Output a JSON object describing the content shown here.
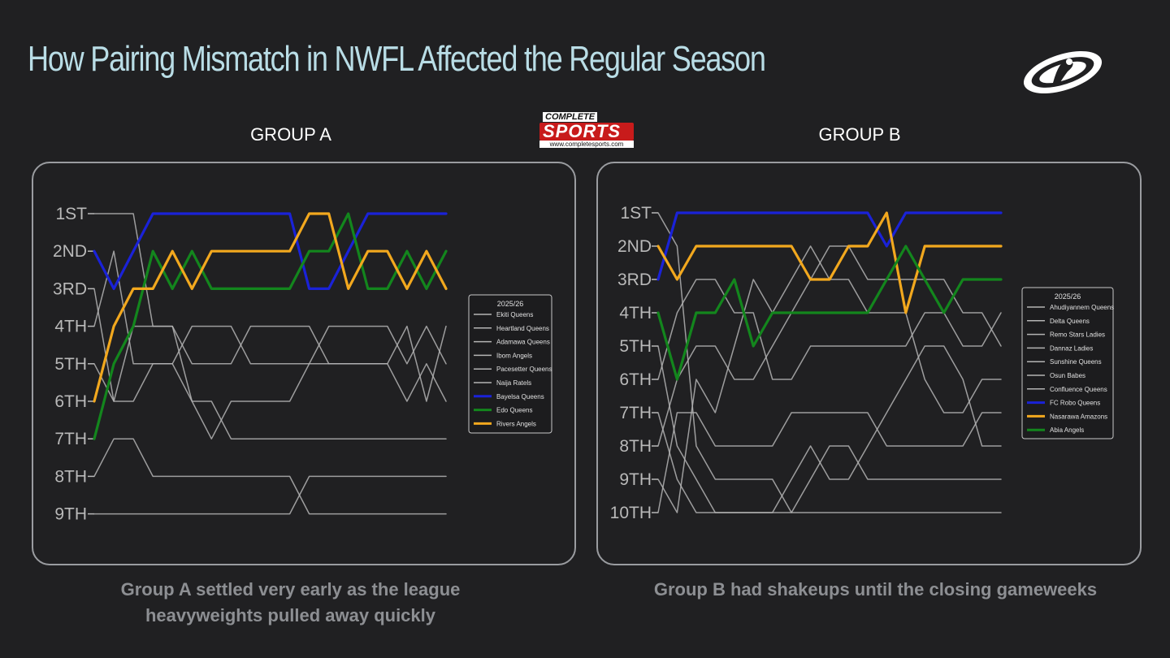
{
  "title": "How Pairing Mismatch in NWFL Affected the Regular Season",
  "logo": {
    "top": "COMPLETE",
    "main": "SPORTS",
    "url": "www.completesports.com"
  },
  "colors": {
    "background": "#202022",
    "title": "#b9dde6",
    "grey_line": "#b4b4b4",
    "blue": "#1a22d8",
    "green": "#13861d",
    "orange": "#f2a81e"
  },
  "chart_data": [
    {
      "type": "line",
      "title": "GROUP A",
      "caption": "Group A settled very early as the league heavyweights pulled away quickly",
      "legend_title": "2025/26",
      "legend_position": "right",
      "y_ticks": [
        "1ST",
        "2ND",
        "3RD",
        "4TH",
        "5TH",
        "6TH",
        "7TH",
        "8TH",
        "9TH"
      ],
      "y_inverted": true,
      "ylim": [
        1,
        9
      ],
      "x": [
        1,
        2,
        3,
        4,
        5,
        6,
        7,
        8,
        9,
        10,
        11,
        12,
        13,
        14,
        15,
        16,
        17,
        18,
        19
      ],
      "series": [
        {
          "name": "Ekiti Queens",
          "color": "#b4b4b4",
          "values": [
            1,
            1,
            1,
            4,
            4,
            6,
            6,
            7,
            7,
            7,
            7,
            7,
            7,
            7,
            7,
            7,
            7,
            7,
            7
          ]
        },
        {
          "name": "Heartland Queens",
          "color": "#b4b4b4",
          "values": [
            3,
            6,
            6,
            5,
            5,
            6,
            7,
            6,
            6,
            6,
            6,
            5,
            5,
            5,
            5,
            5,
            6,
            5,
            6
          ]
        },
        {
          "name": "Adamawa Queens",
          "color": "#b4b4b4",
          "values": [
            4,
            2,
            5,
            5,
            5,
            4,
            4,
            4,
            5,
            5,
            5,
            5,
            4,
            4,
            4,
            4,
            5,
            4,
            5
          ]
        },
        {
          "name": "Ibom Angels",
          "color": "#b4b4b4",
          "values": [
            5,
            6,
            4,
            4,
            4,
            5,
            5,
            5,
            4,
            4,
            4,
            4,
            5,
            5,
            5,
            5,
            4,
            6,
            4
          ]
        },
        {
          "name": "Pacesetter Queens",
          "color": "#b4b4b4",
          "values": [
            8,
            7,
            7,
            8,
            8,
            8,
            8,
            8,
            8,
            8,
            8,
            9,
            9,
            9,
            9,
            9,
            9,
            9,
            9
          ]
        },
        {
          "name": "Naija Ratels",
          "color": "#b4b4b4",
          "values": [
            9,
            9,
            9,
            9,
            9,
            9,
            9,
            9,
            9,
            9,
            9,
            8,
            8,
            8,
            8,
            8,
            8,
            8,
            8
          ]
        },
        {
          "name": "Bayelsa Queens",
          "color": "#1a22d8",
          "values": [
            2,
            3,
            2,
            1,
            1,
            1,
            1,
            1,
            1,
            1,
            1,
            3,
            3,
            2,
            1,
            1,
            1,
            1,
            1
          ]
        },
        {
          "name": "Edo Queens",
          "color": "#13861d",
          "values": [
            7,
            5,
            4,
            2,
            3,
            2,
            3,
            3,
            3,
            3,
            3,
            2,
            2,
            1,
            3,
            3,
            2,
            3,
            2
          ]
        },
        {
          "name": "Rivers Angels",
          "color": "#f2a81e",
          "values": [
            6,
            4,
            3,
            3,
            2,
            3,
            2,
            2,
            2,
            2,
            2,
            1,
            1,
            3,
            2,
            2,
            3,
            2,
            3
          ]
        }
      ]
    },
    {
      "type": "line",
      "title": "GROUP B",
      "caption": "Group B had shakeups until the closing gameweeks",
      "legend_title": "2025/26",
      "legend_position": "right",
      "y_ticks": [
        "1ST",
        "2ND",
        "3RD",
        "4TH",
        "5TH",
        "6TH",
        "7TH",
        "8TH",
        "9TH",
        "10TH"
      ],
      "y_inverted": true,
      "ylim": [
        1,
        10
      ],
      "x": [
        1,
        2,
        3,
        4,
        5,
        6,
        7,
        8,
        9,
        10,
        11,
        12,
        13,
        14,
        15,
        16,
        17,
        18,
        19
      ],
      "series": [
        {
          "name": "Ahudiyannem Queens",
          "color": "#b4b4b4",
          "values": [
            1,
            2,
            8,
            9,
            9,
            9,
            9,
            10,
            10,
            10,
            10,
            10,
            10,
            10,
            10,
            10,
            10,
            10,
            10
          ]
        },
        {
          "name": "Delta Queens",
          "color": "#b4b4b4",
          "values": [
            5,
            8,
            9,
            10,
            10,
            10,
            10,
            9,
            8,
            9,
            9,
            8,
            7,
            6,
            5,
            5,
            6,
            8,
            8
          ]
        },
        {
          "name": "Remo Stars Ladies",
          "color": "#b4b4b4",
          "values": [
            6,
            4,
            3,
            3,
            4,
            4,
            6,
            6,
            5,
            5,
            5,
            5,
            5,
            5,
            4,
            4,
            5,
            5,
            4
          ]
        },
        {
          "name": "Dannaz Ladies",
          "color": "#b4b4b4",
          "values": [
            7,
            9,
            10,
            10,
            10,
            10,
            10,
            10,
            9,
            8,
            8,
            9,
            9,
            9,
            9,
            9,
            9,
            9,
            9
          ]
        },
        {
          "name": "Sunshine Queens",
          "color": "#b4b4b4",
          "values": [
            8,
            6,
            5,
            5,
            6,
            6,
            5,
            4,
            3,
            2,
            2,
            3,
            3,
            3,
            3,
            3,
            4,
            4,
            5
          ]
        },
        {
          "name": "Osun Babes",
          "color": "#b4b4b4",
          "values": [
            9,
            10,
            6,
            7,
            5,
            3,
            4,
            3,
            2,
            3,
            3,
            4,
            4,
            4,
            6,
            7,
            7,
            6,
            6
          ]
        },
        {
          "name": "Confluence Queens",
          "color": "#b4b4b4",
          "values": [
            10,
            7,
            7,
            8,
            8,
            8,
            8,
            7,
            7,
            7,
            7,
            7,
            8,
            8,
            8,
            8,
            8,
            7,
            7
          ]
        },
        {
          "name": "FC Robo Queens",
          "color": "#1a22d8",
          "values": [
            3,
            1,
            1,
            1,
            1,
            1,
            1,
            1,
            1,
            1,
            1,
            1,
            2,
            1,
            1,
            1,
            1,
            1,
            1
          ]
        },
        {
          "name": "Nasarawa Amazons",
          "color": "#f2a81e",
          "values": [
            2,
            3,
            2,
            2,
            2,
            2,
            2,
            2,
            3,
            3,
            2,
            2,
            1,
            4,
            2,
            2,
            2,
            2,
            2
          ]
        },
        {
          "name": "Abia Angels",
          "color": "#13861d",
          "values": [
            4,
            6,
            4,
            4,
            3,
            5,
            4,
            4,
            4,
            4,
            4,
            4,
            3,
            2,
            3,
            4,
            3,
            3,
            3
          ]
        }
      ]
    }
  ]
}
